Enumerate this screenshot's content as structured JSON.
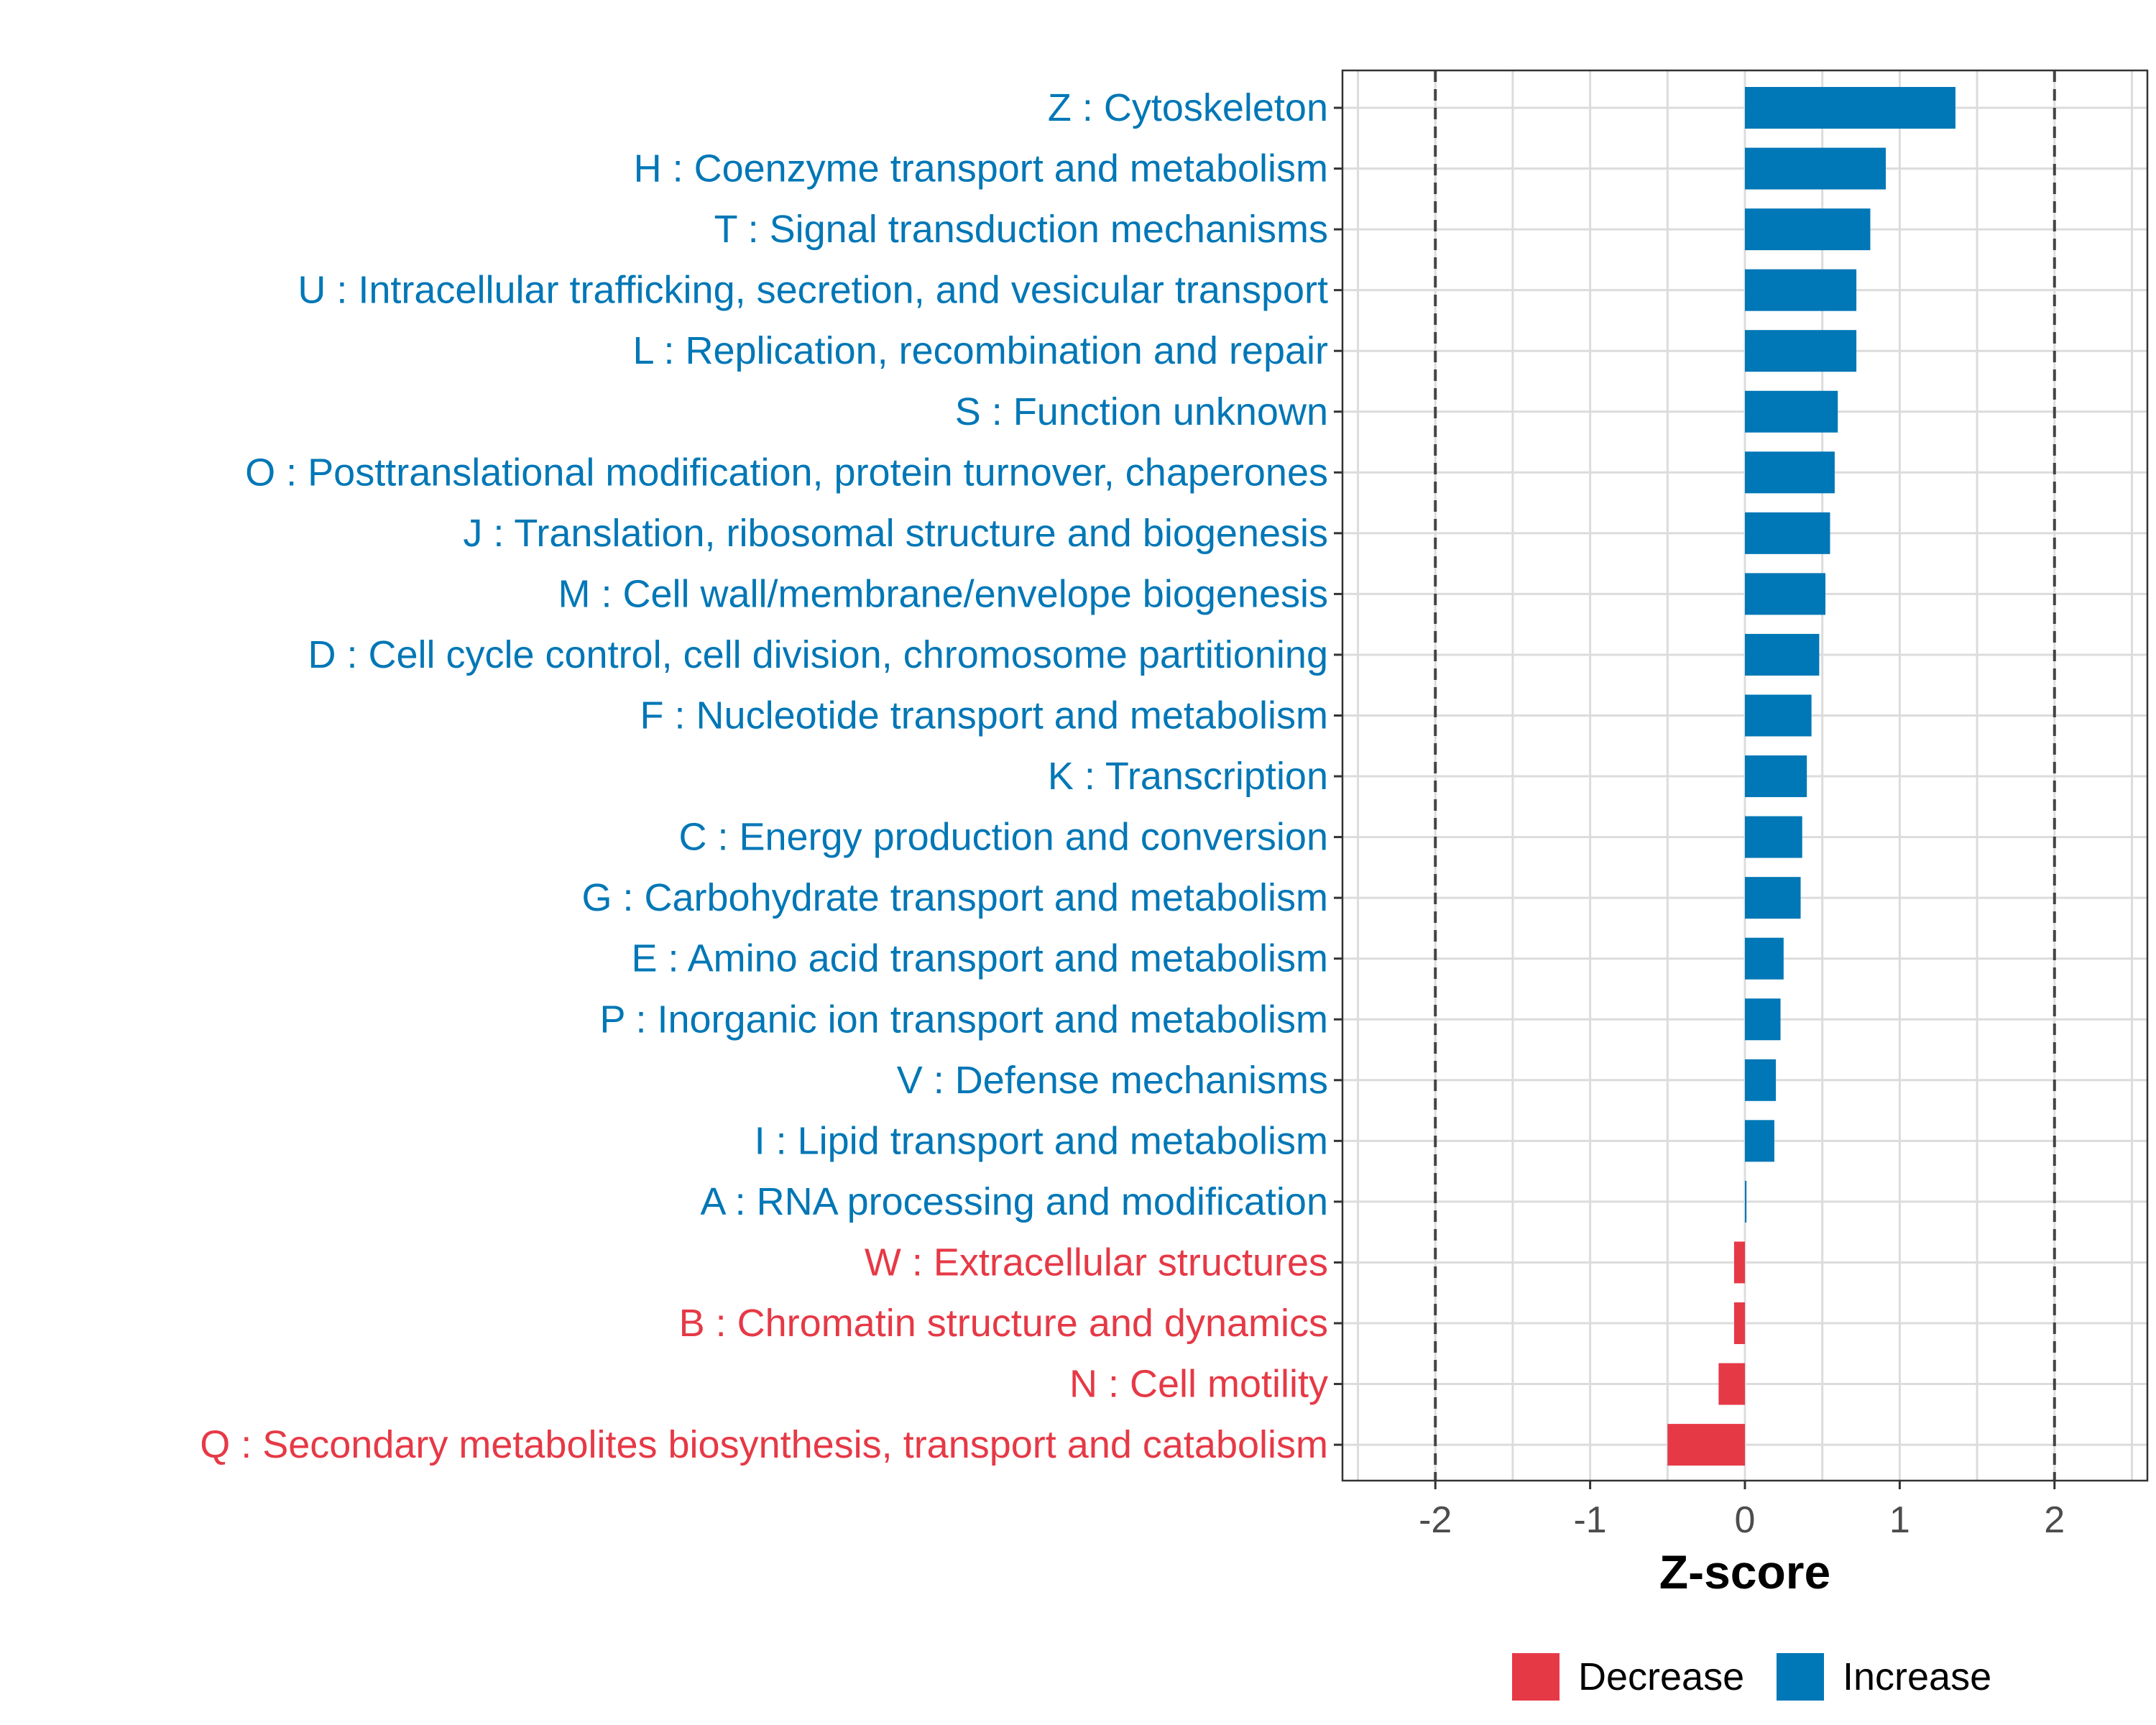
{
  "chart_data": {
    "type": "bar",
    "orientation": "horizontal",
    "xlabel": "Z-score",
    "ylabel": "",
    "xlim": [
      -2.6,
      2.6
    ],
    "xticks": [
      -2,
      -1,
      0,
      1,
      2
    ],
    "xtick_labels": [
      "-2",
      "-1",
      "0",
      "1",
      "2"
    ],
    "reference_lines": [
      -2,
      2
    ],
    "grid": true,
    "legend_position": "bottom",
    "colors": {
      "Decrease": "#E63946",
      "Increase": "#0077B6"
    },
    "legend": [
      {
        "label": "Decrease",
        "color": "#E63946"
      },
      {
        "label": "Increase",
        "color": "#0077B6"
      }
    ],
    "categories": [
      "Z : Cytoskeleton",
      "H : Coenzyme transport and metabolism",
      "T : Signal transduction mechanisms",
      "U : Intracellular trafficking, secretion, and vesicular transport",
      "L : Replication, recombination and repair",
      "S : Function unknown",
      "O : Posttranslational modification, protein turnover, chaperones",
      "J : Translation, ribosomal structure and biogenesis",
      "M : Cell wall/membrane/envelope biogenesis",
      "D : Cell cycle control, cell division, chromosome partitioning",
      "F : Nucleotide transport and metabolism",
      "K : Transcription",
      "C : Energy production and conversion",
      "G : Carbohydrate transport and metabolism",
      "E : Amino acid transport and metabolism",
      "P : Inorganic ion transport and metabolism",
      "V : Defense mechanisms",
      "I : Lipid transport and metabolism",
      "A : RNA processing and modification",
      "W : Extracellular structures",
      "B : Chromatin structure and dynamics",
      "N : Cell motility",
      "Q : Secondary metabolites biosynthesis, transport and catabolism"
    ],
    "values": [
      1.36,
      0.91,
      0.81,
      0.72,
      0.72,
      0.6,
      0.58,
      0.55,
      0.52,
      0.48,
      0.43,
      0.4,
      0.37,
      0.36,
      0.25,
      0.23,
      0.2,
      0.19,
      0.01,
      -0.07,
      -0.07,
      -0.17,
      -0.5
    ],
    "groups": [
      "Increase",
      "Increase",
      "Increase",
      "Increase",
      "Increase",
      "Increase",
      "Increase",
      "Increase",
      "Increase",
      "Increase",
      "Increase",
      "Increase",
      "Increase",
      "Increase",
      "Increase",
      "Increase",
      "Increase",
      "Increase",
      "Increase",
      "Decrease",
      "Decrease",
      "Decrease",
      "Decrease"
    ]
  }
}
